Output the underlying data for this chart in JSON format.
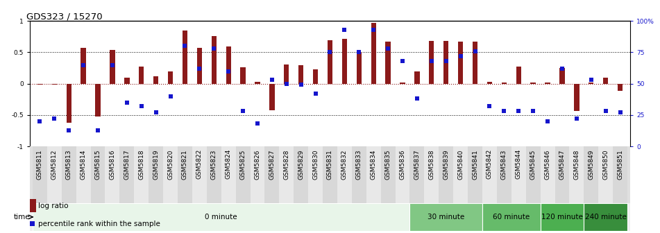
{
  "title": "GDS323 / 15270",
  "samples": [
    "GSM5811",
    "GSM5812",
    "GSM5813",
    "GSM5814",
    "GSM5815",
    "GSM5816",
    "GSM5817",
    "GSM5818",
    "GSM5819",
    "GSM5820",
    "GSM5821",
    "GSM5822",
    "GSM5823",
    "GSM5824",
    "GSM5825",
    "GSM5826",
    "GSM5827",
    "GSM5828",
    "GSM5829",
    "GSM5830",
    "GSM5831",
    "GSM5832",
    "GSM5833",
    "GSM5834",
    "GSM5835",
    "GSM5836",
    "GSM5837",
    "GSM5838",
    "GSM5839",
    "GSM5840",
    "GSM5841",
    "GSM5842",
    "GSM5843",
    "GSM5844",
    "GSM5845",
    "GSM5846",
    "GSM5847",
    "GSM5848",
    "GSM5849",
    "GSM5850",
    "GSM5851"
  ],
  "log_ratio": [
    -0.02,
    -0.02,
    -0.62,
    0.57,
    -0.52,
    0.54,
    0.09,
    0.27,
    0.12,
    0.2,
    0.85,
    0.57,
    0.76,
    0.59,
    0.26,
    0.03,
    -0.42,
    0.31,
    0.3,
    0.23,
    0.69,
    0.71,
    0.5,
    0.97,
    0.67,
    0.02,
    0.2,
    0.68,
    0.68,
    0.67,
    0.67,
    0.03,
    0.02,
    0.27,
    0.02,
    0.02,
    0.25,
    -0.44,
    0.02,
    0.09,
    -0.12
  ],
  "percentile": [
    20,
    22,
    13,
    65,
    13,
    65,
    35,
    32,
    27,
    40,
    80,
    62,
    78,
    60,
    28,
    18,
    53,
    50,
    49,
    42,
    75,
    93,
    75,
    93,
    78,
    68,
    38,
    68,
    68,
    72,
    76,
    32,
    28,
    28,
    28,
    20,
    62,
    22,
    53,
    28,
    27
  ],
  "bar_color": "#8B1A1A",
  "dot_color": "#1515CC",
  "bg_color": "#FFFFFF",
  "plot_bg_color": "#FFFFFF",
  "ylim_left": [
    -1.0,
    1.0
  ],
  "ylim_right": [
    0,
    100
  ],
  "yticks_left": [
    -1.0,
    -0.5,
    0.0,
    0.5,
    1.0
  ],
  "ytick_labels_left": [
    "-1",
    "-0.5",
    "0",
    "0.5",
    "1"
  ],
  "yticks_right": [
    0,
    25,
    50,
    75,
    100
  ],
  "ytick_labels_right": [
    "0",
    "25",
    "50",
    "75",
    "100%"
  ],
  "hlines_black": [
    -0.5,
    0.5
  ],
  "hline_red": 0.0,
  "time_groups": [
    {
      "label": "0 minute",
      "start": 0,
      "end": 26,
      "color": "#e8f5e9"
    },
    {
      "label": "30 minute",
      "start": 26,
      "end": 31,
      "color": "#81c784"
    },
    {
      "label": "60 minute",
      "start": 31,
      "end": 35,
      "color": "#66bb6a"
    },
    {
      "label": "120 minute",
      "start": 35,
      "end": 38,
      "color": "#4caf50"
    },
    {
      "label": "240 minute",
      "start": 38,
      "end": 41,
      "color": "#388e3c"
    }
  ],
  "bar_width": 0.35,
  "dot_size": 22,
  "title_fontsize": 9.5,
  "tick_fontsize": 6.5,
  "time_label_fontsize": 7.5,
  "legend_fontsize": 7.5
}
